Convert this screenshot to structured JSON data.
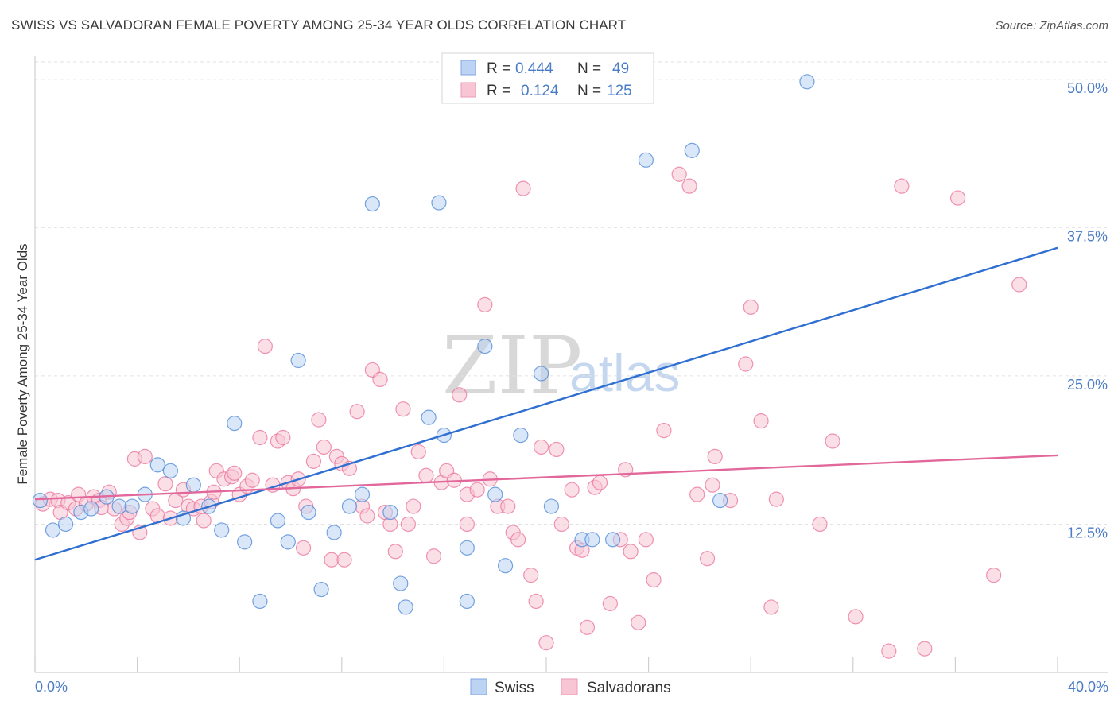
{
  "header": {
    "title": "SWISS VS SALVADORAN FEMALE POVERTY AMONG 25-34 YEAR OLDS CORRELATION CHART",
    "source": "Source: ZipAtlas.com"
  },
  "watermark": {
    "zip": "ZIP",
    "atlas": "atlas"
  },
  "stats_legend": {
    "rows": [
      {
        "r_label": "R =",
        "r_value": "0.444",
        "n_label": "N =",
        "n_value": "49",
        "color": "#a9c6f0"
      },
      {
        "r_label": "R =",
        "r_value": "0.124",
        "n_label": "N =",
        "n_value": "125",
        "color": "#f6b8cb"
      }
    ]
  },
  "bottom_legend": {
    "items": [
      "Swiss",
      "Salvadorans"
    ]
  },
  "chart_data": {
    "type": "scatter",
    "title": "SWISS VS SALVADORAN FEMALE POVERTY AMONG 25-34 YEAR OLDS CORRELATION CHART",
    "xlabel": "",
    "ylabel": "Female Poverty Among 25-34 Year Olds",
    "xlim": [
      0,
      40
    ],
    "ylim": [
      0,
      52
    ],
    "x_tick_labels": [
      "0.0%",
      "40.0%"
    ],
    "y_ticks": [
      12.5,
      25.0,
      37.5,
      50.0
    ],
    "y_tick_labels": [
      "12.5%",
      "25.0%",
      "37.5%",
      "50.0%"
    ],
    "grid": "horizontal dashed",
    "legend_position": "top-center",
    "colors": {
      "swiss": "#4a86d6",
      "swiss_fill": "#bcd3f3",
      "salvadorans": "#e9709a",
      "salvadorans_fill": "#f7c5d4",
      "axis_text": "#4a7cc7"
    },
    "series": [
      {
        "name": "Swiss",
        "r": 0.444,
        "n": 49,
        "trend": {
          "x": [
            0,
            40
          ],
          "y": [
            9.5,
            35.8
          ]
        },
        "points": [
          [
            0.2,
            14.5
          ],
          [
            0.7,
            12
          ],
          [
            1.2,
            12.5
          ],
          [
            1.8,
            13.5
          ],
          [
            2.2,
            13.8
          ],
          [
            2.8,
            14.8
          ],
          [
            3.3,
            14
          ],
          [
            3.8,
            14
          ],
          [
            4.3,
            15
          ],
          [
            4.8,
            17.5
          ],
          [
            5.3,
            17
          ],
          [
            5.8,
            13
          ],
          [
            6.2,
            15.8
          ],
          [
            6.8,
            14
          ],
          [
            7.3,
            12
          ],
          [
            8.2,
            11
          ],
          [
            7.8,
            21
          ],
          [
            8.8,
            6
          ],
          [
            9.5,
            12.8
          ],
          [
            9.9,
            11
          ],
          [
            10.3,
            26.3
          ],
          [
            10.7,
            13.5
          ],
          [
            11.2,
            7
          ],
          [
            11.7,
            11.8
          ],
          [
            12.3,
            14
          ],
          [
            12.8,
            15
          ],
          [
            13.2,
            39.5
          ],
          [
            13.9,
            13.5
          ],
          [
            14.3,
            7.5
          ],
          [
            14.5,
            5.5
          ],
          [
            15.4,
            21.5
          ],
          [
            15.8,
            39.6
          ],
          [
            16.0,
            20
          ],
          [
            16.9,
            10.5
          ],
          [
            16.9,
            6
          ],
          [
            17.6,
            27.5
          ],
          [
            18.0,
            15
          ],
          [
            18.4,
            9
          ],
          [
            19.0,
            20
          ],
          [
            19.8,
            25.2
          ],
          [
            20.2,
            14
          ],
          [
            20.6,
            50
          ],
          [
            21.4,
            11.2
          ],
          [
            21.8,
            11.2
          ],
          [
            22.6,
            11.2
          ],
          [
            23.9,
            43.2
          ],
          [
            25.7,
            44
          ],
          [
            26.8,
            14.5
          ],
          [
            30.2,
            49.8
          ]
        ]
      },
      {
        "name": "Salvadorans",
        "r": 0.124,
        "n": 125,
        "trend": {
          "x": [
            0,
            40
          ],
          "y": [
            14.6,
            18.3
          ]
        },
        "points": [
          [
            0.3,
            14.2
          ],
          [
            0.6,
            14.6
          ],
          [
            0.9,
            14.5
          ],
          [
            1.0,
            13.5
          ],
          [
            1.3,
            14.3
          ],
          [
            1.6,
            13.8
          ],
          [
            1.7,
            15
          ],
          [
            2.0,
            14.2
          ],
          [
            2.3,
            14.8
          ],
          [
            2.5,
            14.5
          ],
          [
            2.6,
            13.9
          ],
          [
            2.9,
            15.2
          ],
          [
            3.1,
            13.8
          ],
          [
            3.4,
            12.5
          ],
          [
            3.6,
            13
          ],
          [
            3.7,
            13.5
          ],
          [
            3.9,
            18
          ],
          [
            4.1,
            11.8
          ],
          [
            4.3,
            18.2
          ],
          [
            4.6,
            13.8
          ],
          [
            4.8,
            13.2
          ],
          [
            5.1,
            15.9
          ],
          [
            5.3,
            13
          ],
          [
            5.5,
            14.5
          ],
          [
            5.8,
            15.4
          ],
          [
            6.0,
            14
          ],
          [
            6.2,
            13.8
          ],
          [
            6.5,
            14
          ],
          [
            6.6,
            12.8
          ],
          [
            6.9,
            14.4
          ],
          [
            7.0,
            15.2
          ],
          [
            7.1,
            17
          ],
          [
            7.4,
            16.3
          ],
          [
            7.7,
            16.5
          ],
          [
            7.8,
            16.8
          ],
          [
            8.0,
            15
          ],
          [
            8.3,
            15.7
          ],
          [
            8.5,
            16.2
          ],
          [
            8.8,
            19.8
          ],
          [
            9.0,
            27.5
          ],
          [
            9.3,
            15.8
          ],
          [
            9.5,
            19.5
          ],
          [
            9.7,
            19.8
          ],
          [
            9.9,
            16
          ],
          [
            10.1,
            15.5
          ],
          [
            10.3,
            16.3
          ],
          [
            10.5,
            10.5
          ],
          [
            10.6,
            14
          ],
          [
            10.9,
            17.8
          ],
          [
            11.1,
            21.3
          ],
          [
            11.3,
            19
          ],
          [
            11.6,
            9.5
          ],
          [
            11.8,
            18.2
          ],
          [
            12.0,
            17.6
          ],
          [
            12.1,
            9.5
          ],
          [
            12.3,
            17.2
          ],
          [
            12.6,
            22
          ],
          [
            12.8,
            14
          ],
          [
            13.0,
            13.2
          ],
          [
            13.2,
            25.5
          ],
          [
            13.5,
            24.7
          ],
          [
            13.7,
            13.5
          ],
          [
            13.9,
            12.5
          ],
          [
            14.1,
            10.2
          ],
          [
            14.4,
            22.2
          ],
          [
            14.6,
            12.5
          ],
          [
            14.8,
            14
          ],
          [
            15.0,
            18.6
          ],
          [
            15.3,
            16.6
          ],
          [
            15.6,
            9.8
          ],
          [
            15.9,
            16.0
          ],
          [
            16.1,
            17
          ],
          [
            16.4,
            16.2
          ],
          [
            16.6,
            23.4
          ],
          [
            16.9,
            15
          ],
          [
            16.9,
            12.5
          ],
          [
            17.3,
            15.4
          ],
          [
            17.6,
            31
          ],
          [
            17.8,
            16.3
          ],
          [
            18.1,
            14
          ],
          [
            18.5,
            14
          ],
          [
            18.7,
            11.8
          ],
          [
            18.9,
            11.2
          ],
          [
            19.1,
            40.8
          ],
          [
            19.4,
            8.2
          ],
          [
            19.6,
            6
          ],
          [
            19.8,
            19
          ],
          [
            20.0,
            2.5
          ],
          [
            20.4,
            18.8
          ],
          [
            20.6,
            12.5
          ],
          [
            21.0,
            15.4
          ],
          [
            21.2,
            10.5
          ],
          [
            21.4,
            10.3
          ],
          [
            21.6,
            3.8
          ],
          [
            21.9,
            15.6
          ],
          [
            22.1,
            16
          ],
          [
            22.5,
            5.8
          ],
          [
            22.9,
            11.2
          ],
          [
            23.1,
            17.1
          ],
          [
            23.3,
            10.2
          ],
          [
            23.6,
            4.2
          ],
          [
            23.9,
            11.2
          ],
          [
            24.2,
            7.8
          ],
          [
            24.6,
            20.4
          ],
          [
            25.2,
            42
          ],
          [
            25.6,
            41
          ],
          [
            25.9,
            15
          ],
          [
            26.3,
            9.6
          ],
          [
            26.5,
            15.8
          ],
          [
            26.6,
            18.2
          ],
          [
            27.2,
            14.5
          ],
          [
            27.8,
            26
          ],
          [
            28.0,
            30.8
          ],
          [
            28.4,
            21.2
          ],
          [
            28.8,
            5.5
          ],
          [
            29.0,
            14.6
          ],
          [
            30.7,
            12.5
          ],
          [
            31.2,
            19.5
          ],
          [
            32.1,
            4.7
          ],
          [
            33.4,
            1.8
          ],
          [
            33.9,
            41
          ],
          [
            34.8,
            2
          ],
          [
            36.1,
            40
          ],
          [
            37.5,
            8.2
          ],
          [
            38.5,
            32.7
          ]
        ]
      }
    ]
  }
}
